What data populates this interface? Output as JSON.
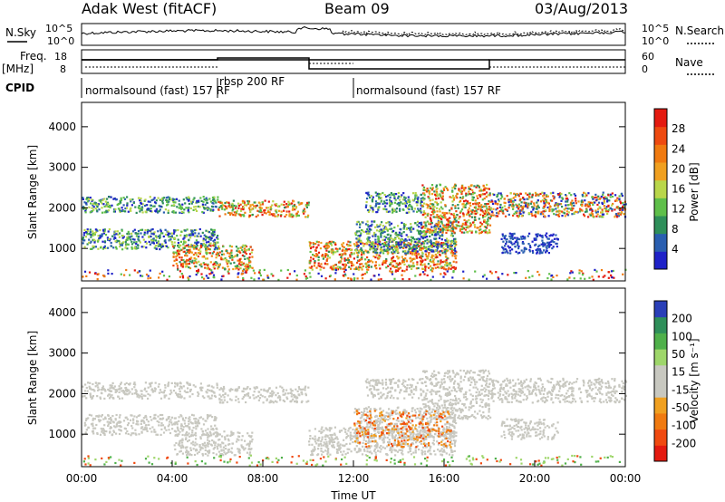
{
  "header": {
    "station": "Adak West (fitACF)",
    "beam": "Beam 09",
    "date": "03/Aug/2013"
  },
  "top_panels": {
    "nsky_label": "N.Sky",
    "nsearch_label": "N.Search",
    "noise_ticks_left": [
      "10^5",
      "10^0"
    ],
    "noise_ticks_right": [
      "10^5",
      "10^0"
    ],
    "freq_label_1": "Freq.",
    "freq_label_2": "[MHz]",
    "freq_ticks": [
      "18",
      "8"
    ],
    "nave_label": "Nave",
    "nave_ticks": [
      "60",
      "0"
    ],
    "cpid_label": "CPID",
    "cpid_segments": [
      {
        "text": "normalsound (fast) 157 RF",
        "start_hour": 0
      },
      {
        "text": "rbsp 200 RF",
        "start_hour": 6
      },
      {
        "text": "normalsound (fast) 157 RF",
        "start_hour": 12
      }
    ]
  },
  "colors": {
    "power_scale": [
      "#1f22c8",
      "#2a5fb0",
      "#2f8f5a",
      "#5fbf4a",
      "#b9d64a",
      "#f0a020",
      "#f07a10",
      "#ee4a10",
      "#e41a10"
    ],
    "velocity_scale": [
      "#e41a10",
      "#f04a10",
      "#f07a10",
      "#f0a020",
      "#c8c8c0",
      "#c8c8c0",
      "#9ed66a",
      "#4fb04a",
      "#2f8f5a",
      "#2a3fb8"
    ]
  },
  "chart_data": [
    {
      "type": "heatmap",
      "name": "power",
      "ylabel": "Slant Range [km]",
      "yticks": [
        "1000",
        "2000",
        "3000",
        "4000"
      ],
      "ylim": [
        200,
        4600
      ],
      "xlim_hours": [
        0,
        24
      ],
      "colorbar_label": "Power [dB]",
      "colorbar_ticks": [
        "4",
        "8",
        "12",
        "16",
        "20",
        "24",
        "28"
      ],
      "colorbar_range": [
        0,
        32
      ]
    },
    {
      "type": "heatmap",
      "name": "velocity",
      "ylabel": "Slant Range [km]",
      "yticks": [
        "1000",
        "2000",
        "3000",
        "4000"
      ],
      "ylim": [
        200,
        4600
      ],
      "xlim_hours": [
        0,
        24
      ],
      "colorbar_label": "Velocity [m s⁻¹]",
      "colorbar_ticks": [
        "200",
        "100",
        "50",
        "15",
        "-15",
        "-50",
        "-100",
        "-200"
      ]
    }
  ],
  "xaxis": {
    "ticks": [
      "00:00",
      "04:00",
      "08:00",
      "12:00",
      "16:00",
      "20:00",
      "00:00"
    ],
    "label": "Time UT"
  }
}
